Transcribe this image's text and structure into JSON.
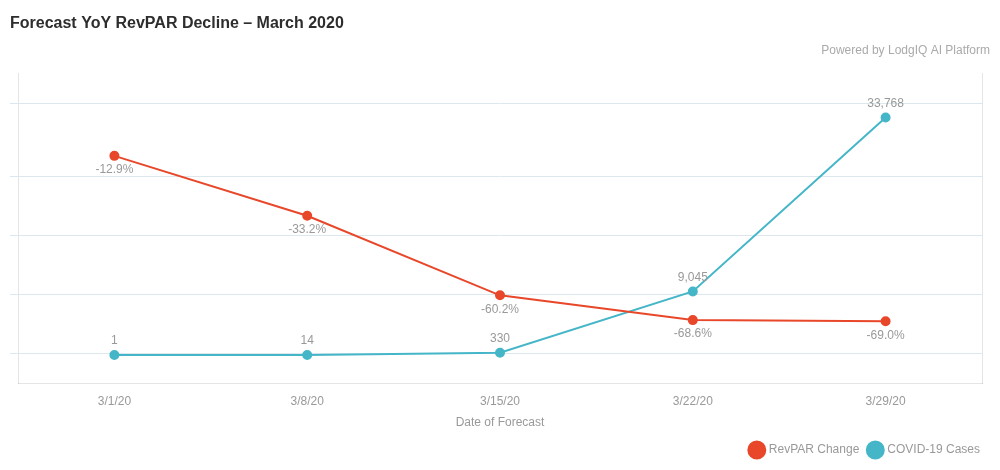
{
  "chart_data": {
    "type": "line",
    "title": "Forecast YoY RevPAR Decline – March 2020",
    "subtitle": "Powered by LodgIQ AI Platform",
    "x_label": "Date of Forecast",
    "categories": [
      "3/1/20",
      "3/8/20",
      "3/15/20",
      "3/22/20",
      "3/29/20"
    ],
    "series": [
      {
        "name": "RevPAR Change",
        "color": "#E8472A",
        "marker": "o",
        "line_style": "solid",
        "values": [
          -12.9,
          -33.2,
          -60.2,
          -68.6,
          -69.0
        ],
        "value_labels": [
          "-12.9%",
          "-33.2%",
          "-60.2%",
          "-68.6%",
          "-69.0%"
        ]
      },
      {
        "name": "COVID-19 Cases",
        "color": "#45B6C8",
        "marker": "o",
        "line_style": "solid",
        "axis": "y2",
        "values": [
          1,
          14,
          330,
          9045,
          33768
        ],
        "value_labels": [
          "1",
          "14",
          "330",
          "9,045",
          "33,768"
        ]
      }
    ],
    "ylim": [
      -90,
      15
    ],
    "yticks": [
      -80,
      -60,
      -40,
      -20,
      5
    ],
    "y2lim": [
      -4000,
      40000
    ],
    "grid": "y",
    "tick_labels": "x",
    "data_labels": true,
    "legend": "lower right"
  }
}
